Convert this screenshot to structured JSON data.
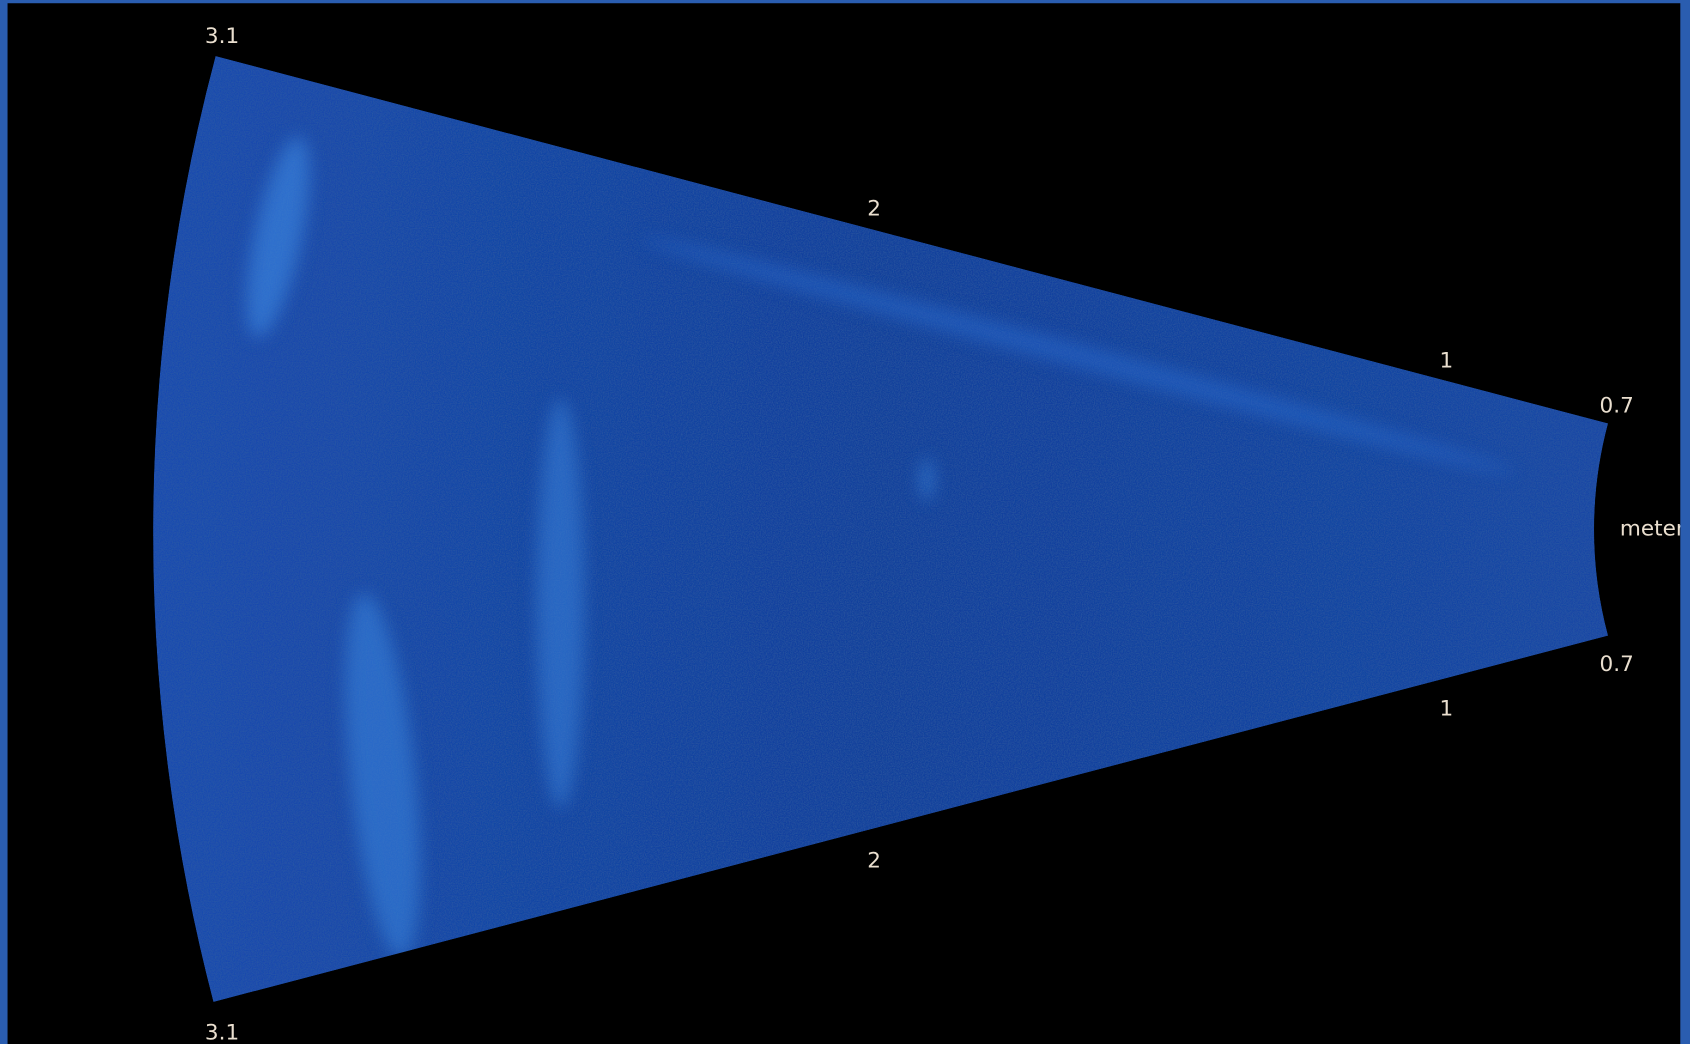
{
  "range_scale": {
    "top_labels": [
      "3.1",
      "2",
      "1",
      "0.7"
    ],
    "bottom_labels": [
      "0.7",
      "1",
      "2",
      "3.1"
    ],
    "unit": "meter"
  }
}
